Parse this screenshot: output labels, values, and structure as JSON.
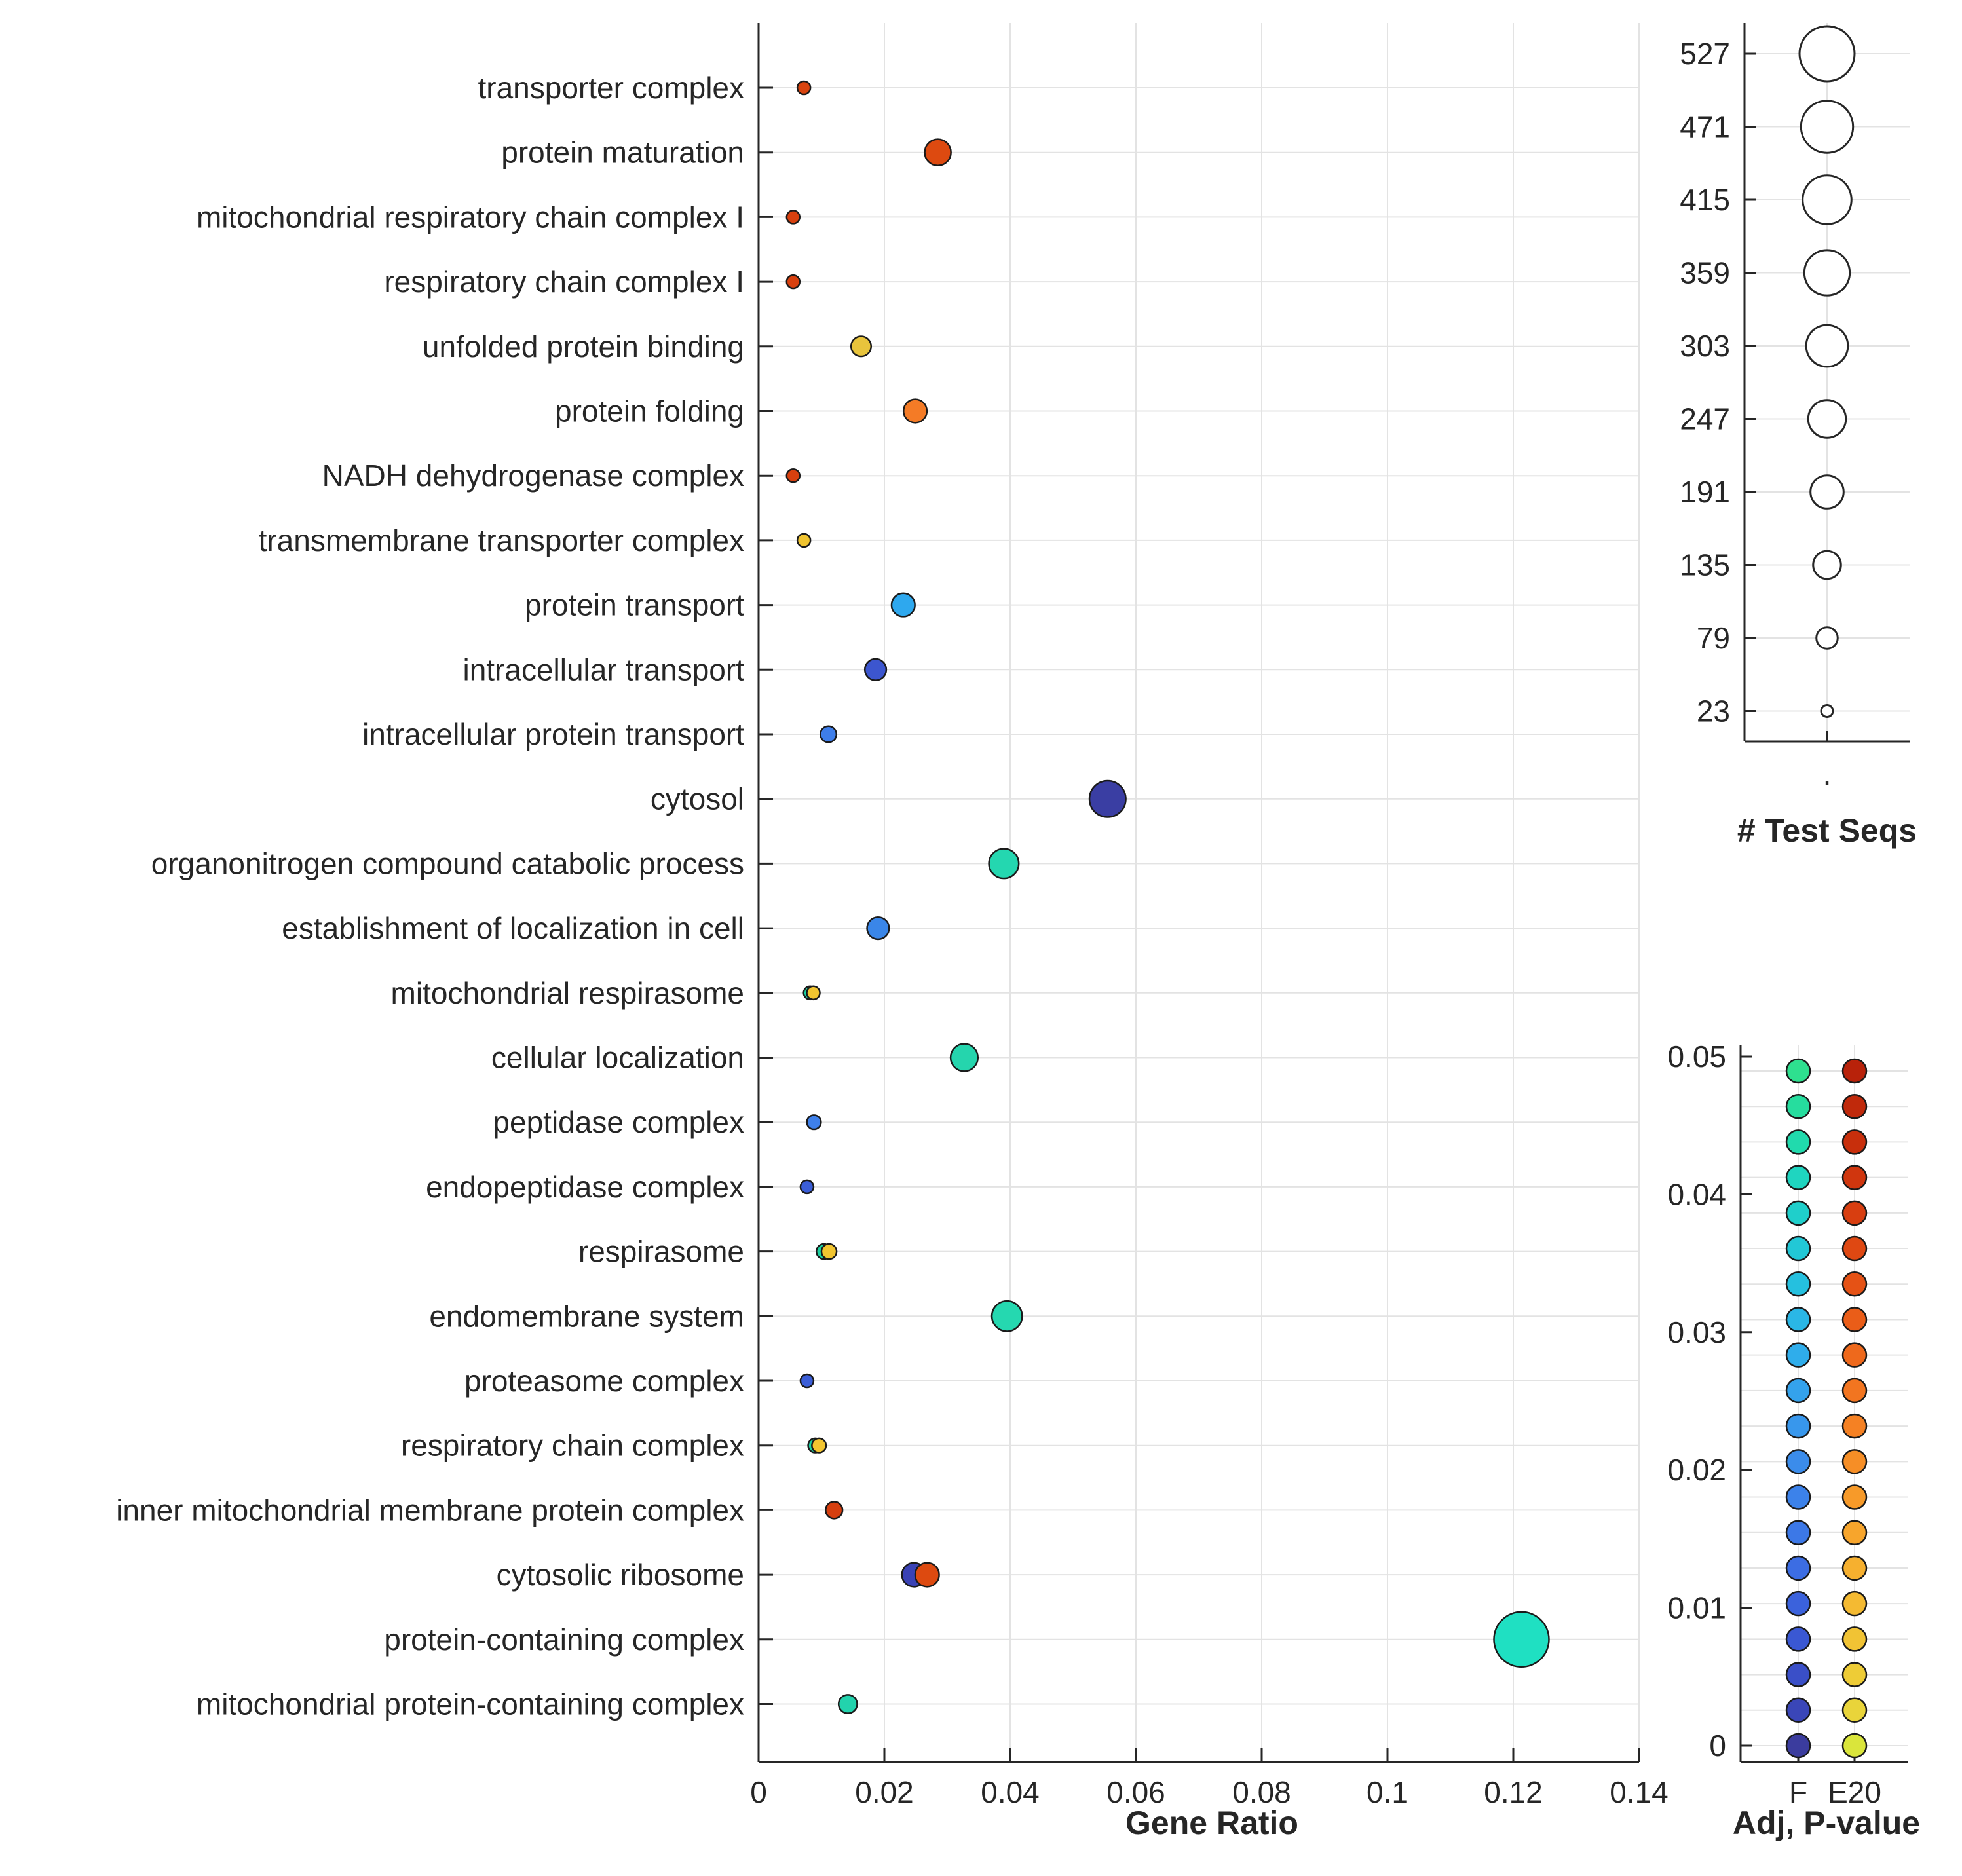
{
  "chart_data": [
    {
      "type": "scatter",
      "subtype": "bubble",
      "xlabel": "Gene Ratio",
      "ylabel": "",
      "xlim": [
        0,
        0.14
      ],
      "xticks": [
        "0",
        "0.02",
        "0.04",
        "0.06",
        "0.08",
        "0.1",
        "0.12",
        "0.14"
      ],
      "xtick_values": [
        0,
        0.02,
        0.04,
        0.06,
        0.08,
        0.1,
        0.12,
        0.14
      ],
      "categories": [
        "transporter complex",
        "protein maturation",
        "mitochondrial respiratory chain complex I",
        "respiratory chain complex I",
        "unfolded protein binding",
        "protein folding",
        "NADH dehydrogenase complex",
        "transmembrane transporter complex",
        "protein transport",
        "intracellular transport",
        "intracellular protein transport",
        "cytosol",
        "organonitrogen compound catabolic process",
        "establishment of localization in cell",
        "mitochondrial respirasome",
        "cellular localization",
        "peptidase complex",
        "endopeptidase complex",
        "respirasome",
        "endomembrane system",
        "proteasome complex",
        "respiratory chain complex",
        "inner mitochondrial membrane protein complex",
        "cytosolic ribosome",
        "protein-containing complex",
        "mitochondrial protein-containing complex"
      ],
      "points": [
        {
          "category": "transporter complex",
          "x": 0.0072,
          "size": 30,
          "color": "#d9440f"
        },
        {
          "category": "protein maturation",
          "x": 0.0285,
          "size": 120,
          "color": "#dd4a10"
        },
        {
          "category": "mitochondrial respiratory chain complex I",
          "x": 0.0055,
          "size": 23,
          "color": "#d8400e"
        },
        {
          "category": "respiratory chain complex I",
          "x": 0.0055,
          "size": 23,
          "color": "#d8400e"
        },
        {
          "category": "unfolded protein binding",
          "x": 0.0163,
          "size": 70,
          "color": "#e8c43c"
        },
        {
          "category": "protein folding",
          "x": 0.0249,
          "size": 95,
          "color": "#f47b26"
        },
        {
          "category": "NADH dehydrogenase complex",
          "x": 0.0055,
          "size": 23,
          "color": "#d8400e"
        },
        {
          "category": "transmembrane transporter complex",
          "x": 0.0072,
          "size": 30,
          "color": "#f0c430"
        },
        {
          "category": "protein transport",
          "x": 0.023,
          "size": 95,
          "color": "#2ea8ee"
        },
        {
          "category": "intracellular transport",
          "x": 0.0186,
          "size": 80,
          "color": "#3c56cf"
        },
        {
          "category": "intracellular protein transport",
          "x": 0.0111,
          "size": 45,
          "color": "#3e7eea"
        },
        {
          "category": "cytosol",
          "x": 0.0555,
          "size": 230,
          "color": "#3a3ea3"
        },
        {
          "category": "organonitrogen compound catabolic process",
          "x": 0.039,
          "size": 155,
          "color": "#24d7b0"
        },
        {
          "category": "establishment of localization in cell",
          "x": 0.019,
          "size": 85,
          "color": "#3a86e8"
        },
        {
          "category": "mitochondrial respirasome",
          "x": 0.0082,
          "size": 30,
          "color": "#1ad1a0"
        },
        {
          "category": "mitochondrial respirasome",
          "x": 0.0087,
          "size": 30,
          "color": "#f2c530"
        },
        {
          "category": "cellular localization",
          "x": 0.0327,
          "size": 130,
          "color": "#25d5ad"
        },
        {
          "category": "peptidase complex",
          "x": 0.0088,
          "size": 35,
          "color": "#3e80ea"
        },
        {
          "category": "endopeptidase complex",
          "x": 0.0077,
          "size": 30,
          "color": "#3b5ed8"
        },
        {
          "category": "respirasome",
          "x": 0.0104,
          "size": 40,
          "color": "#1ad1a0"
        },
        {
          "category": "respirasome",
          "x": 0.0112,
          "size": 40,
          "color": "#f2c530"
        },
        {
          "category": "endomembrane system",
          "x": 0.0395,
          "size": 160,
          "color": "#25d8b0"
        },
        {
          "category": "proteasome complex",
          "x": 0.0077,
          "size": 30,
          "color": "#3b5ed8"
        },
        {
          "category": "respiratory chain complex",
          "x": 0.009,
          "size": 35,
          "color": "#1ad1a0"
        },
        {
          "category": "respiratory chain complex",
          "x": 0.0096,
          "size": 35,
          "color": "#f2c530"
        },
        {
          "category": "inner mitochondrial membrane protein complex",
          "x": 0.012,
          "size": 50,
          "color": "#d63f0f"
        },
        {
          "category": "cytosolic ribosome",
          "x": 0.0247,
          "size": 100,
          "color": "#3a42b5"
        },
        {
          "category": "cytosolic ribosome",
          "x": 0.0268,
          "size": 100,
          "color": "#dd4a10"
        },
        {
          "category": "protein-containing complex",
          "x": 0.1213,
          "size": 527,
          "color": "#1fe0c2"
        },
        {
          "category": "mitochondrial protein-containing complex",
          "x": 0.0142,
          "size": 60,
          "color": "#22d3ad"
        }
      ]
    },
    {
      "type": "scatter",
      "subtype": "size-legend",
      "title": "# Test Seqs",
      "values": [
        527,
        471,
        415,
        359,
        303,
        247,
        191,
        135,
        79,
        23
      ],
      "xtick_label": "."
    },
    {
      "type": "scatter",
      "subtype": "color-legend",
      "title": "Adj, P-value",
      "ylim": [
        0,
        0.05
      ],
      "yticks": [
        "0",
        "0.01",
        "0.02",
        "0.03",
        "0.04",
        "0.05"
      ],
      "ytick_values": [
        0,
        0.01,
        0.02,
        0.03,
        0.04,
        0.05
      ],
      "categories": [
        "F",
        "E20"
      ],
      "series": [
        {
          "name": "F",
          "colors": [
            "#3b3c9e",
            "#3a46b8",
            "#3a4fc8",
            "#3a58d3",
            "#3b62dc",
            "#3c6de3",
            "#3c78e7",
            "#3c82ea",
            "#3b8ceb",
            "#3897ec",
            "#34a2ec",
            "#2fadeb",
            "#2ab7e6",
            "#25c0df",
            "#22c8d6",
            "#1fcfcb",
            "#1fd5c0",
            "#21daad",
            "#26dd9e",
            "#2ee08f"
          ]
        },
        {
          "name": "E20",
          "colors": [
            "#dae53b",
            "#e9d43a",
            "#eecc36",
            "#f1c334",
            "#f4ba32",
            "#f6b02f",
            "#f7a52c",
            "#f79a29",
            "#f68e26",
            "#f58123",
            "#f27520",
            "#ee691c",
            "#ea5d18",
            "#e55215",
            "#df4812",
            "#d83e10",
            "#d0360e",
            "#c82f0c",
            "#c0290b",
            "#b8220a"
          ]
        }
      ]
    }
  ]
}
